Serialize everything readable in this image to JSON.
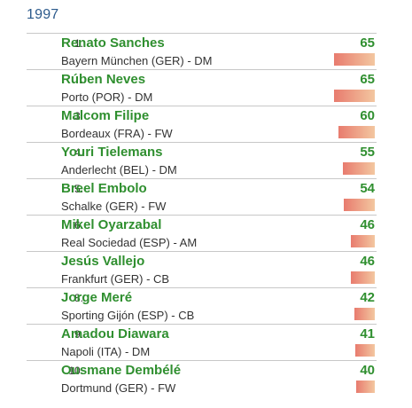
{
  "year": "1997",
  "players": [
    {
      "rank": "1.",
      "name": "Renato Sanches",
      "club": "Bayern München (GER) - DM",
      "rating": "65",
      "rating_value": 65
    },
    {
      "rank": ".",
      "name": "Rúben Neves",
      "club": "Porto (POR) - DM",
      "rating": "65",
      "rating_value": 65
    },
    {
      "rank": "3.",
      "name": "Malcom Filipe",
      "club": "Bordeaux (FRA) - FW",
      "rating": "60",
      "rating_value": 60
    },
    {
      "rank": "4.",
      "name": "Youri Tielemans",
      "club": "Anderlecht (BEL) - DM",
      "rating": "55",
      "rating_value": 55
    },
    {
      "rank": "5.",
      "name": "Breel Embolo",
      "club": "Schalke (GER) - FW",
      "rating": "54",
      "rating_value": 54
    },
    {
      "rank": "6.",
      "name": "Mikel Oyarzabal",
      "club": "Real Sociedad (ESP) - AM",
      "rating": "46",
      "rating_value": 46
    },
    {
      "rank": ".",
      "name": "Jesús Vallejo",
      "club": "Frankfurt (GER) - CB",
      "rating": "46",
      "rating_value": 46
    },
    {
      "rank": "8.",
      "name": "Jorge Meré",
      "club": "Sporting Gijón (ESP) - CB",
      "rating": "42",
      "rating_value": 42
    },
    {
      "rank": "9.",
      "name": "Amadou Diawara",
      "club": "Napoli (ITA) - DM",
      "rating": "41",
      "rating_value": 41
    },
    {
      "rank": "10.",
      "name": "Ousmane Dembélé",
      "club": "Dortmund (GER) - FW",
      "rating": "40",
      "rating_value": 40
    }
  ],
  "colors": {
    "year": "#2c5a8c",
    "name": "#2f8f2f",
    "rating": "#2f8f2f",
    "bar_start": "#e87b6e",
    "bar_end": "#f3c7a0"
  }
}
